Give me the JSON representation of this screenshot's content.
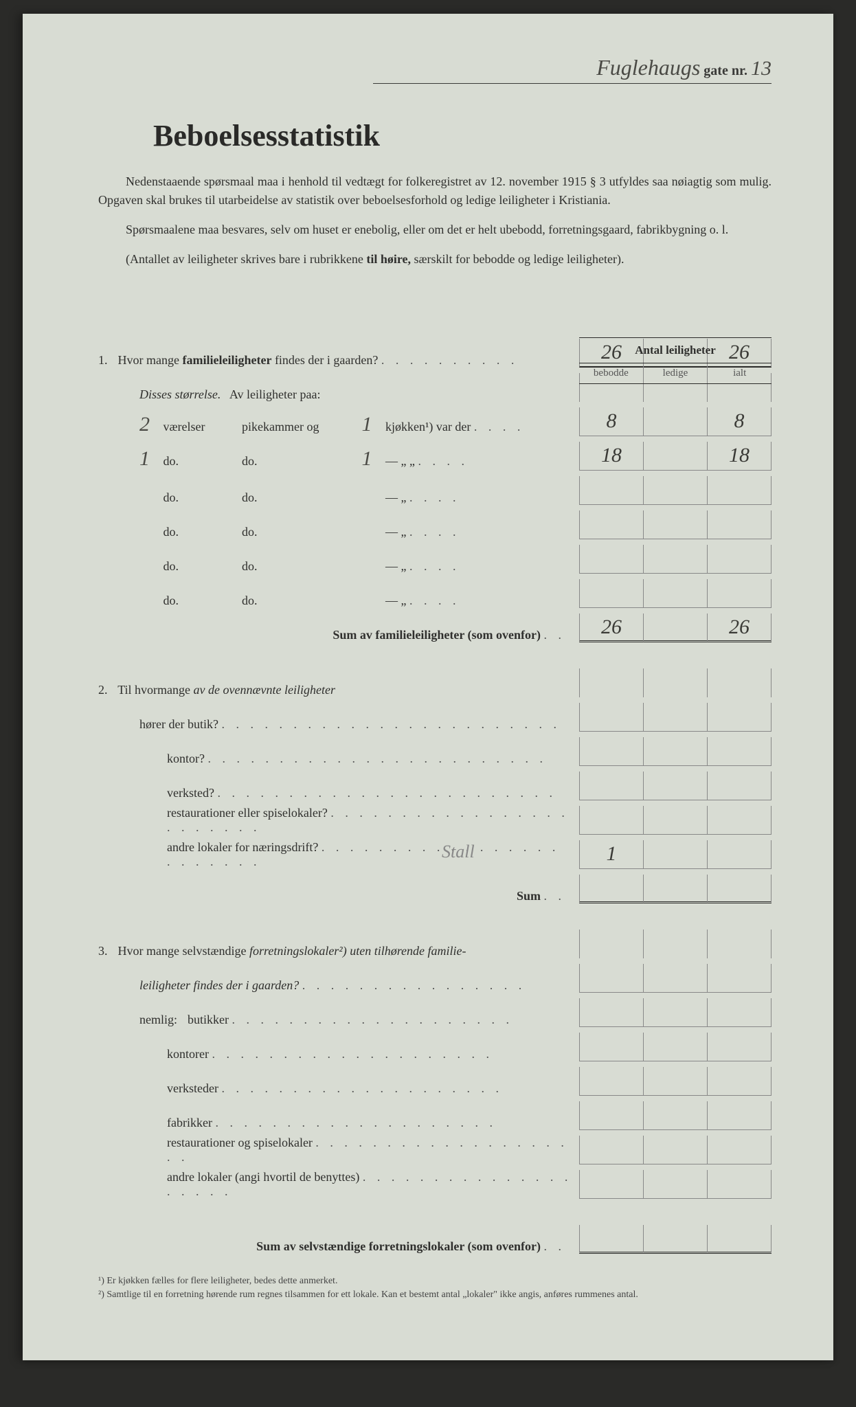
{
  "header": {
    "street_handwritten": "Fuglehaugs",
    "gate_label": "gate nr.",
    "number_handwritten": "13"
  },
  "title": "Beboelsesstatistik",
  "intro": {
    "p1": "Nedenstaaende spørsmaal maa i henhold til vedtægt for folkeregistret av 12. november 1915 § 3 utfyldes saa nøiagtig som mulig. Opgaven skal brukes til utarbeidelse av statistik over beboelsesforhold og ledige leiligheter i Kristiania.",
    "p2": "Spørsmaalene maa besvares, selv om huset er enebolig, eller om det er helt ubebodd, forretningsgaard, fabrikbygning o. l.",
    "p3": "(Antallet av leiligheter skrives bare i rubrikkene til høire, særskilt for bebodde og ledige leiligheter)."
  },
  "columns": {
    "title": "Antal leiligheter",
    "sub1": "bebodde",
    "sub2": "ledige",
    "sub3": "ialt"
  },
  "q1": {
    "num": "1.",
    "text_a": "Hvor mange ",
    "text_b": "familieleiligheter",
    "text_c": " findes der i gaarden?",
    "bebodde": "26",
    "ialt": "26",
    "disses": "Disses størrelse.",
    "av_leil": "Av leiligheter paa:",
    "rows": [
      {
        "v": "2",
        "vlabel": "værelser",
        "plabel": "pikekammer og",
        "k": "1",
        "klabel": "kjøkken¹) var der",
        "bebodde": "8",
        "ialt": "8"
      },
      {
        "v": "1",
        "vlabel": "do.",
        "plabel": "do.",
        "k": "1",
        "klabel": "—      „      „",
        "bebodde": "18",
        "ialt": "18"
      },
      {
        "v": "",
        "vlabel": "do.",
        "plabel": "do.",
        "k": "",
        "klabel": "—      „",
        "bebodde": "",
        "ialt": ""
      },
      {
        "v": "",
        "vlabel": "do.",
        "plabel": "do.",
        "k": "",
        "klabel": "—      „",
        "bebodde": "",
        "ialt": ""
      },
      {
        "v": "",
        "vlabel": "do.",
        "plabel": "do.",
        "k": "",
        "klabel": "—      „",
        "bebodde": "",
        "ialt": ""
      },
      {
        "v": "",
        "vlabel": "do.",
        "plabel": "do.",
        "k": "",
        "klabel": "—      „",
        "bebodde": "",
        "ialt": ""
      }
    ],
    "sum_label": "Sum av familieleiligheter (som ovenfor)",
    "sum_bebodde": "26",
    "sum_ialt": "26"
  },
  "q2": {
    "num": "2.",
    "text": "Til hvormange av de ovennævnte leiligheter",
    "rows": [
      {
        "label": "hører der butik?",
        "val": ""
      },
      {
        "label": "kontor?",
        "val": ""
      },
      {
        "label": "verksted?",
        "val": ""
      },
      {
        "label": "restaurationer eller spiselokaler?",
        "val": ""
      },
      {
        "label": "andre lokaler for næringsdrift?",
        "val": "1"
      }
    ],
    "annotation": "Stall",
    "sum_label": "Sum"
  },
  "q3": {
    "num": "3.",
    "text_a": "Hvor mange selvstændige ",
    "text_b": "forretningslokaler²)",
    "text_c": " uten tilhørende familieleiligheter findes der i gaarden?",
    "nemlig": "nemlig:",
    "rows": [
      {
        "label": "butikker"
      },
      {
        "label": "kontorer"
      },
      {
        "label": "verksteder"
      },
      {
        "label": "fabrikker"
      },
      {
        "label": "restaurationer og spiselokaler"
      },
      {
        "label": "andre lokaler (angi hvortil de benyttes)"
      }
    ],
    "sum_label": "Sum av selvstændige forretningslokaler (som ovenfor)"
  },
  "footnotes": {
    "f1": "¹) Er kjøkken fælles for flere leiligheter, bedes dette anmerket.",
    "f2": "²) Samtlige til en forretning hørende rum regnes tilsammen for ett lokale. Kan et bestemt antal „lokaler\" ikke angis, anføres rummenes antal."
  }
}
